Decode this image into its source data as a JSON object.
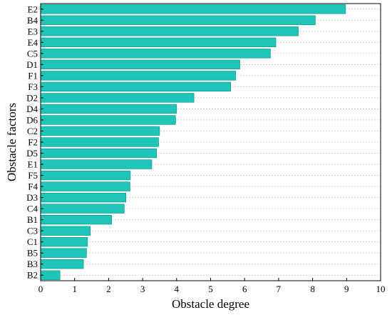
{
  "chart_data": {
    "type": "bar",
    "orientation": "horizontal",
    "xlabel": "Obstacle degree",
    "ylabel": "Obstacle factors",
    "xlim": [
      0,
      10
    ],
    "xticks": [
      0,
      1,
      2,
      3,
      4,
      5,
      6,
      7,
      8,
      9,
      10
    ],
    "grid": "dashed horizontal",
    "categories": [
      "E2",
      "B4",
      "E3",
      "E4",
      "C5",
      "D1",
      "F1",
      "F3",
      "D2",
      "D4",
      "D6",
      "C2",
      "F2",
      "D5",
      "E1",
      "F5",
      "F4",
      "D3",
      "C4",
      "B1",
      "C3",
      "C1",
      "B5",
      "B3",
      "B2"
    ],
    "values": [
      8.97,
      8.08,
      7.58,
      6.92,
      6.76,
      5.86,
      5.74,
      5.59,
      4.51,
      4.0,
      3.97,
      3.5,
      3.47,
      3.41,
      3.27,
      2.64,
      2.63,
      2.51,
      2.46,
      2.09,
      1.46,
      1.38,
      1.35,
      1.26,
      0.57
    ],
    "bar_color": "#1fc6b8",
    "bar_edge_color": "#0e8f84"
  }
}
